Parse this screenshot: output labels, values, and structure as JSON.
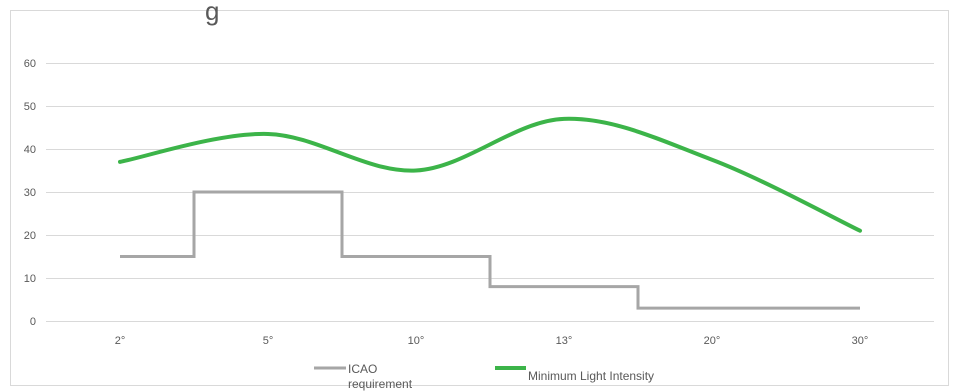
{
  "chart_data": {
    "type": "line",
    "title": "g",
    "categories": [
      "2°",
      "5°",
      "10°",
      "13°",
      "20°",
      "30°"
    ],
    "ylim": [
      0,
      60
    ],
    "yticks": [
      0,
      10,
      20,
      30,
      40,
      50,
      60
    ],
    "grid": true,
    "legend_position": "bottom",
    "series": [
      {
        "name": "ICAO requirement",
        "style": "step",
        "color": "#a6a6a6",
        "values": [
          15,
          30,
          15,
          8,
          3,
          3
        ]
      },
      {
        "name": "Minimum Light Intensity",
        "style": "smooth",
        "color": "#3cb449",
        "values": [
          37,
          43.5,
          35,
          47,
          37.5,
          21
        ]
      }
    ]
  }
}
